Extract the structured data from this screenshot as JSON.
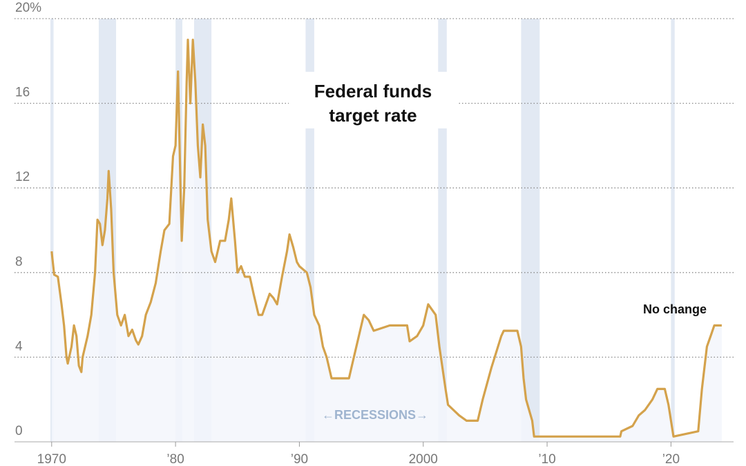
{
  "chart_data": {
    "type": "line",
    "title": [
      "Federal funds",
      "target rate"
    ],
    "annotation": "No change",
    "recession_label": "←RECESSIONS→",
    "color": "#d4a24c",
    "area_color": "#f3f6fb",
    "recession_color": "#e2e9f3",
    "grid": true,
    "xlim": [
      1967,
      2025.5
    ],
    "ylim": [
      0,
      20
    ],
    "yticks": [
      {
        "value": 20,
        "label": "20%"
      },
      16,
      12,
      8,
      4,
      0
    ],
    "xticks": [
      1970,
      {
        "value": 1980,
        "label": "’80"
      },
      {
        "value": 1990,
        "label": "’90"
      },
      2000,
      {
        "value": 2010,
        "label": "’10"
      },
      {
        "value": 2020,
        "label": "’20"
      }
    ],
    "recessions": [
      [
        1969.9,
        1970.15
      ],
      [
        1973.8,
        1975.2
      ],
      [
        1980.0,
        1980.55
      ],
      [
        1981.5,
        1982.9
      ],
      [
        1990.5,
        1991.2
      ],
      [
        2001.2,
        2001.9
      ],
      [
        2007.9,
        2009.4
      ],
      [
        2020.0,
        2020.3
      ]
    ],
    "x": [
      1970.0,
      1970.2,
      1970.5,
      1970.8,
      1971.0,
      1971.2,
      1971.3,
      1971.6,
      1971.8,
      1972.0,
      1972.2,
      1972.4,
      1972.5,
      1972.9,
      1973.2,
      1973.5,
      1973.7,
      1973.9,
      1974.1,
      1974.3,
      1974.5,
      1974.6,
      1974.8,
      1975.0,
      1975.3,
      1975.6,
      1975.9,
      1976.2,
      1976.5,
      1976.8,
      1977.0,
      1977.3,
      1977.6,
      1978.0,
      1978.4,
      1978.8,
      1979.1,
      1979.5,
      1979.8,
      1980.0,
      1980.2,
      1980.4,
      1980.5,
      1980.7,
      1980.9,
      1981.0,
      1981.2,
      1981.4,
      1981.6,
      1981.8,
      1982.0,
      1982.2,
      1982.4,
      1982.6,
      1982.9,
      1983.2,
      1983.6,
      1984.0,
      1984.3,
      1984.5,
      1984.8,
      1985.0,
      1985.3,
      1985.6,
      1986.0,
      1986.3,
      1986.7,
      1987.0,
      1987.3,
      1987.6,
      1987.9,
      1988.2,
      1988.6,
      1989.0,
      1989.2,
      1989.5,
      1989.8,
      1990.0,
      1990.6,
      1990.9,
      1991.2,
      1991.6,
      1991.9,
      1992.2,
      1992.6,
      1993.0,
      1994.0,
      1994.4,
      1994.8,
      1995.2,
      1995.6,
      1996.0,
      1997.3,
      1998.7,
      1998.9,
      1999.5,
      2000.0,
      2000.4,
      2001.0,
      2001.3,
      2001.8,
      2002.0,
      2002.9,
      2003.5,
      2004.4,
      2004.8,
      2005.5,
      2006.3,
      2006.5,
      2007.6,
      2007.9,
      2008.1,
      2008.3,
      2008.8,
      2008.95,
      2015.9,
      2016.0,
      2016.9,
      2017.4,
      2017.9,
      2018.5,
      2018.9,
      2019.5,
      2019.8,
      2020.2,
      2022.2,
      2022.5,
      2022.9,
      2023.2,
      2023.5,
      2024.1
    ],
    "values": [
      9.0,
      7.9,
      7.8,
      6.5,
      5.5,
      4.0,
      3.7,
      4.5,
      5.5,
      5.0,
      3.6,
      3.3,
      4.0,
      5.0,
      6.0,
      8.0,
      10.5,
      10.3,
      9.3,
      10.0,
      11.5,
      12.8,
      11.0,
      8.0,
      6.0,
      5.5,
      6.0,
      5.0,
      5.3,
      4.8,
      4.6,
      5.0,
      6.0,
      6.6,
      7.5,
      9.0,
      10.0,
      10.3,
      13.5,
      14.0,
      17.5,
      12.0,
      9.5,
      12.0,
      17.0,
      19.0,
      16.0,
      19.0,
      17.0,
      14.0,
      12.5,
      15.0,
      14.0,
      10.5,
      9.0,
      8.5,
      9.5,
      9.5,
      10.5,
      11.5,
      9.5,
      8.0,
      8.3,
      7.8,
      7.8,
      7.0,
      6.0,
      6.0,
      6.5,
      7.0,
      6.8,
      6.5,
      7.8,
      9.0,
      9.8,
      9.2,
      8.5,
      8.3,
      8.0,
      7.3,
      6.0,
      5.5,
      4.5,
      4.0,
      3.0,
      3.0,
      3.0,
      4.0,
      5.0,
      6.0,
      5.75,
      5.25,
      5.5,
      5.5,
      4.75,
      5.0,
      5.5,
      6.5,
      6.0,
      4.5,
      2.5,
      1.75,
      1.25,
      1.0,
      1.0,
      2.0,
      3.5,
      5.0,
      5.25,
      5.25,
      4.5,
      3.0,
      2.0,
      1.0,
      0.25,
      0.25,
      0.5,
      0.75,
      1.25,
      1.5,
      2.0,
      2.5,
      2.5,
      1.75,
      0.25,
      0.5,
      2.5,
      4.5,
      5.0,
      5.5,
      5.5
    ]
  }
}
